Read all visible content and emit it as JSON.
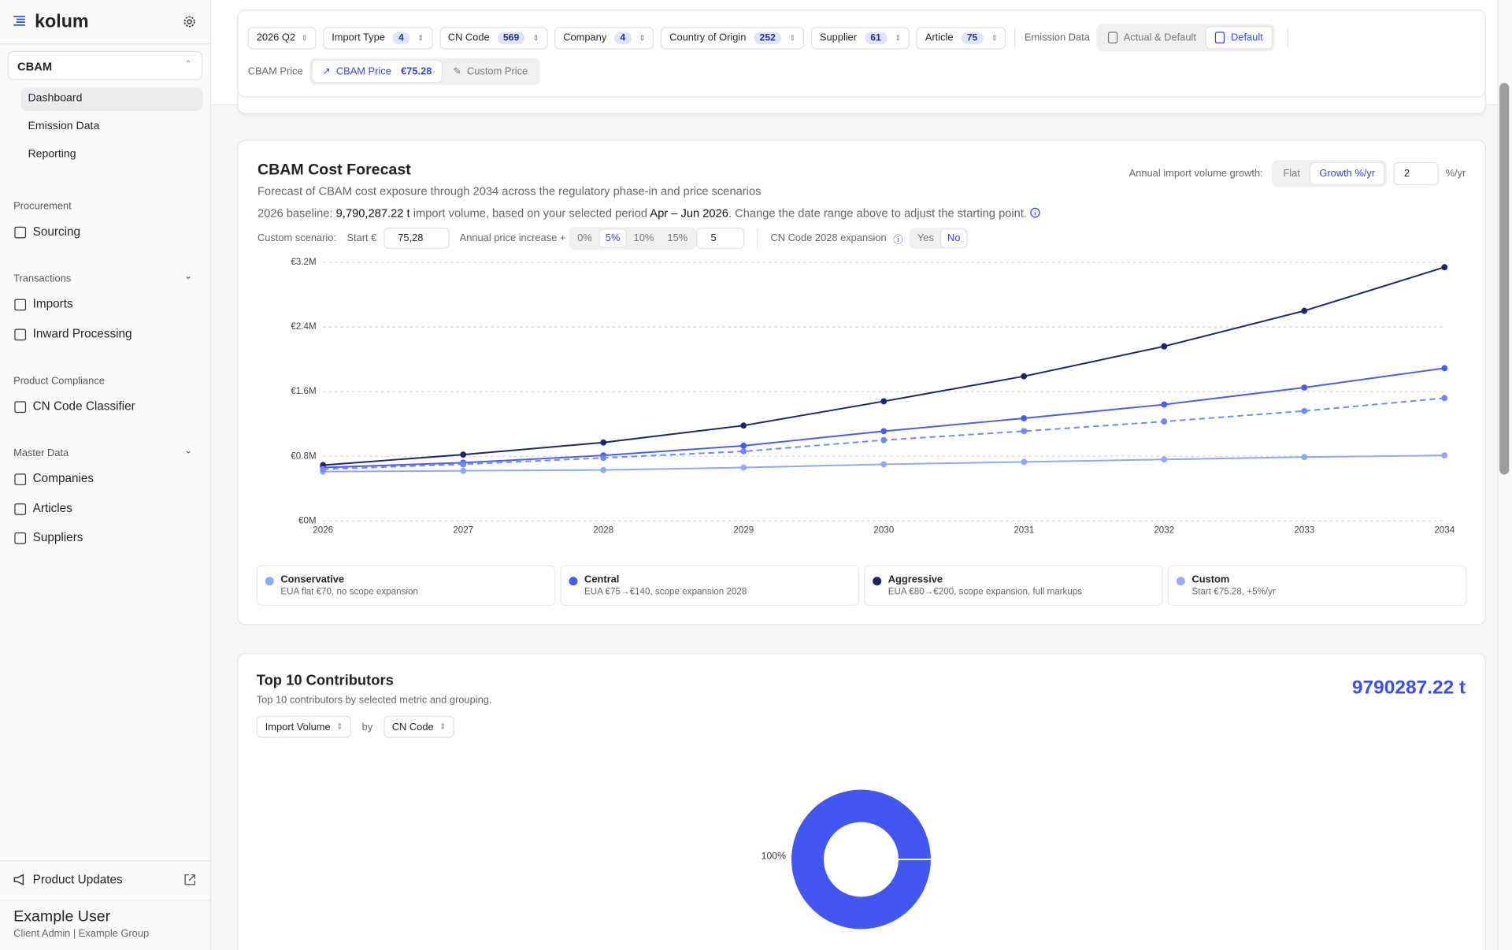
{
  "sidebar": {
    "brand": "kolum",
    "module": "CBAM",
    "module_items": [
      "Dashboard",
      "Emission Data",
      "Reporting"
    ],
    "sections": [
      {
        "title": "Procurement",
        "items": [
          "Sourcing"
        ]
      },
      {
        "title": "Transactions",
        "items": [
          "Imports",
          "Inward Processing"
        ]
      },
      {
        "title": "Product Compliance",
        "items": [
          "CN Code Classifier"
        ]
      },
      {
        "title": "Master Data",
        "items": [
          "Companies",
          "Articles",
          "Suppliers"
        ]
      }
    ],
    "footer_link": "Product Updates",
    "user": {
      "name": "Example User",
      "role": "Client Admin | Example Group"
    }
  },
  "filters": {
    "period": "2026 Q2",
    "chips": [
      {
        "label": "Import Type",
        "count": 4
      },
      {
        "label": "CN Code",
        "count": 569
      },
      {
        "label": "Company",
        "count": 4
      },
      {
        "label": "Country of Origin",
        "count": 252
      },
      {
        "label": "Supplier",
        "count": 61
      },
      {
        "label": "Article",
        "count": 75
      }
    ],
    "emission_label": "Emission Data",
    "emission_options": [
      "Actual & Default",
      "Default"
    ],
    "price_label": "CBAM Price",
    "price_options": [
      {
        "label": "CBAM Price",
        "value": "€75.28"
      },
      {
        "label": "Custom Price"
      }
    ]
  },
  "forecast": {
    "title": "CBAM Cost Forecast",
    "subtitle": "Forecast of CBAM cost exposure through 2034 across the regulatory phase-in and price scenarios",
    "baseline": {
      "prefix": "2026 baseline:",
      "volume": "9,790,287.22 t",
      "middle": "import volume, based on your selected period",
      "period": "Apr – Jun 2026",
      "suffix": ". Change the date range above to adjust the starting point."
    },
    "growth_label": "Annual import volume growth:",
    "growth_options": [
      "Flat",
      "Growth %/yr"
    ],
    "growth_value": "2",
    "growth_unit": "%/yr",
    "scenario_label": "Custom scenario:",
    "start_label": "Start €",
    "start_value": "75,28",
    "increase_label": "Annual price increase +",
    "increase_options": [
      "0%",
      "5%",
      "10%",
      "15%"
    ],
    "increase_value": "5",
    "expansion_label": "CN Code 2028 expansion",
    "expansion_options": [
      "Yes",
      "No"
    ]
  },
  "contributors": {
    "title": "Top 10 Contributors",
    "subtitle": "Top 10 contributors by selected metric and grouping.",
    "total": "9790287.22 t",
    "metric": "Import Volume",
    "by": "by",
    "grouping": "CN Code"
  },
  "chart_data": [
    {
      "type": "line",
      "categories": [
        "2026",
        "2027",
        "2028",
        "2029",
        "2030",
        "2031",
        "2032",
        "2033",
        "2034"
      ],
      "ylim": [
        0,
        3.2
      ],
      "yticks": [
        {
          "value": 0,
          "label": "€0M"
        },
        {
          "value": 0.8,
          "label": "€0.8M"
        },
        {
          "value": 1.6,
          "label": "€1.6M"
        },
        {
          "value": 2.4,
          "label": "€2.4M"
        },
        {
          "value": 3.2,
          "label": "€3.2M"
        }
      ],
      "grid": true,
      "series": [
        {
          "name": "Conservative",
          "description": "EUA flat €70, no scope expansion",
          "color": "#8ea7f6",
          "dashed": false,
          "values": [
            0.61,
            0.62,
            0.63,
            0.66,
            0.7,
            0.73,
            0.76,
            0.79,
            0.81
          ]
        },
        {
          "name": "Central",
          "description": "EUA €75→€140, scope expansion 2028",
          "color": "#4a5cf0",
          "dashed": false,
          "values": [
            0.66,
            0.72,
            0.81,
            0.93,
            1.11,
            1.27,
            1.44,
            1.65,
            1.89
          ]
        },
        {
          "name": "Aggressive",
          "description": "EUA €80→€200, scope expansion, full markups",
          "color": "#1b2568",
          "dashed": false,
          "values": [
            0.69,
            0.82,
            0.97,
            1.18,
            1.48,
            1.79,
            2.16,
            2.6,
            3.14
          ]
        },
        {
          "name": "Custom",
          "description": "Start €75.28, +5%/yr",
          "color": "#7088f0",
          "dashed": true,
          "values": [
            0.64,
            0.7,
            0.78,
            0.86,
            1.0,
            1.11,
            1.23,
            1.36,
            1.52
          ]
        }
      ]
    },
    {
      "type": "pie",
      "donut": true,
      "values": [
        100
      ],
      "value_labels": [
        "100%"
      ],
      "color": "#4157f0"
    }
  ]
}
